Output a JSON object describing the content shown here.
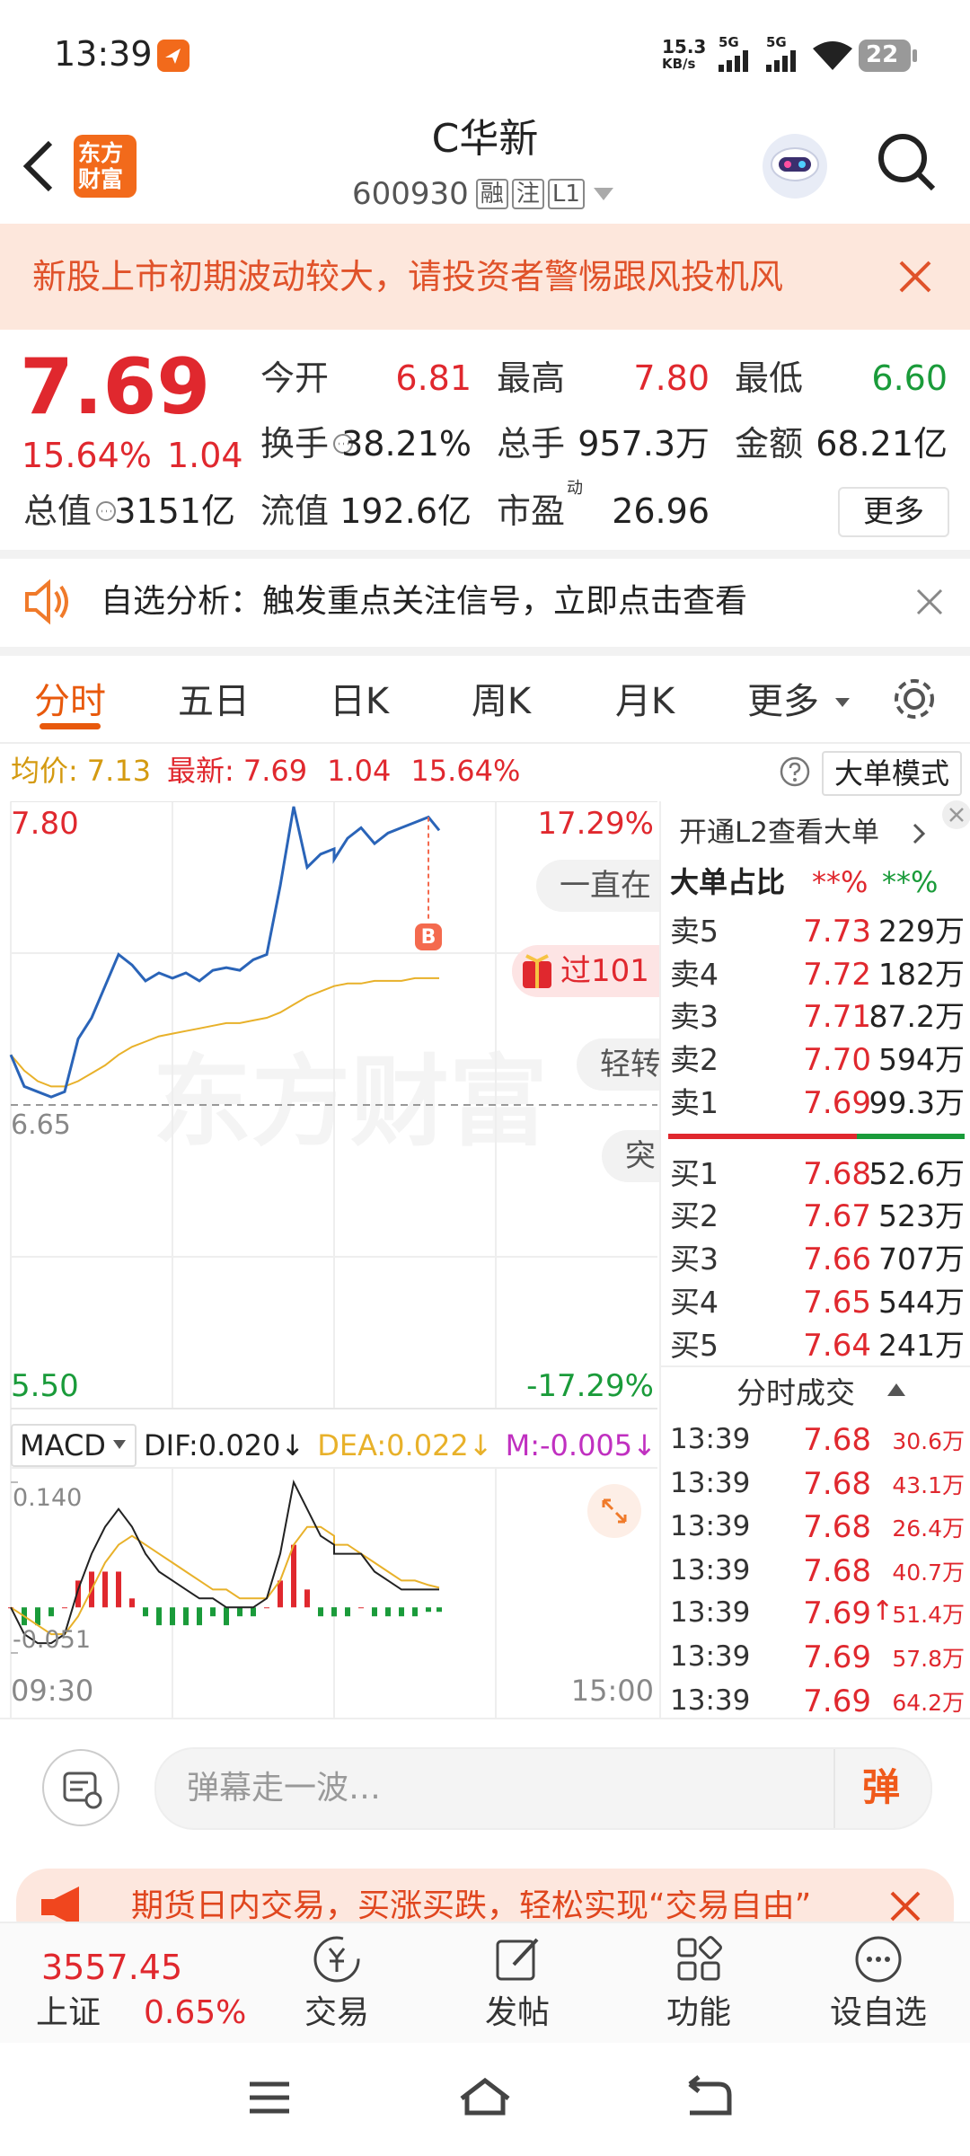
{
  "status_bar": {
    "time": "13:39",
    "net_speed": "15.3",
    "net_unit": "KB/s",
    "signal_1": "5G",
    "signal_2": "5G",
    "battery": "22"
  },
  "header": {
    "title": "C华新",
    "code": "600930",
    "tags": [
      "融",
      "注",
      "L1"
    ],
    "logo": [
      "东方",
      "财富"
    ]
  },
  "warning": {
    "text": "新股上市初期波动较大，请投资者警惕跟风投机风"
  },
  "quote": {
    "price": "7.69",
    "change_pct": "15.64%",
    "change": "1.04",
    "fields": [
      {
        "label": "今开",
        "value": "6.81"
      },
      {
        "label": "最高",
        "value": "7.80"
      },
      {
        "label": "最低",
        "value": "6.60"
      },
      {
        "label": "换手",
        "value": "38.21%"
      },
      {
        "label": "总手",
        "value": "957.3万"
      },
      {
        "label": "金额",
        "value": "68.21亿"
      },
      {
        "label": "总值",
        "value": "3151亿"
      },
      {
        "label": "流值",
        "value": "192.6亿"
      },
      {
        "label": "市盈",
        "sup": "动",
        "value": "26.96"
      }
    ],
    "more": "更多"
  },
  "notice": {
    "text": "自选分析：触发重点关注信号，立即点击查看"
  },
  "tabs": {
    "items": [
      "分时",
      "五日",
      "日K",
      "周K",
      "月K",
      "更多"
    ],
    "active": 0
  },
  "ticker_line": {
    "avg_label": "均价:",
    "avg": "7.13",
    "latest_label": "最新:",
    "latest": "7.69",
    "change": "1.04",
    "change_pct": "15.64%",
    "mode_button": "大单模式"
  },
  "intraday": {
    "x": [
      "09:30",
      "09:35",
      "09:40",
      "09:45",
      "09:50",
      "09:55",
      "10:00",
      "10:05",
      "10:10",
      "10:15",
      "10:20",
      "10:25",
      "10:30",
      "10:35",
      "10:40",
      "10:45",
      "10:50",
      "10:55",
      "11:00",
      "11:05",
      "11:10",
      "11:15",
      "11:20",
      "11:25",
      "11:30",
      "13:00",
      "13:05",
      "13:10",
      "13:15",
      "13:20",
      "13:25",
      "13:30",
      "13:35",
      "13:39"
    ],
    "price": [
      6.84,
      6.72,
      6.7,
      6.68,
      6.7,
      6.9,
      6.98,
      7.1,
      7.22,
      7.18,
      7.12,
      7.15,
      7.13,
      7.15,
      7.12,
      7.16,
      7.17,
      7.16,
      7.2,
      7.22,
      7.48,
      7.78,
      7.55,
      7.6,
      7.62,
      7.58,
      7.66,
      7.7,
      7.64,
      7.68,
      7.7,
      7.72,
      7.74,
      7.69
    ],
    "avg": [
      6.84,
      6.78,
      6.74,
      6.72,
      6.72,
      6.74,
      6.77,
      6.8,
      6.84,
      6.87,
      6.89,
      6.91,
      6.92,
      6.93,
      6.94,
      6.95,
      6.96,
      6.96,
      6.97,
      6.98,
      7.0,
      7.03,
      7.06,
      7.08,
      7.1,
      7.1,
      7.11,
      7.11,
      7.12,
      7.12,
      7.12,
      7.13,
      7.13,
      7.13
    ],
    "ylim": [
      5.5,
      7.8
    ],
    "yticks": [
      {
        "value": 7.8,
        "label": "7.80"
      },
      {
        "value": 6.65,
        "label": "6.65"
      },
      {
        "value": 5.5,
        "label": "5.50"
      }
    ],
    "pct_labels": [
      "17.29%",
      "-17.29%"
    ],
    "x_labels": [
      "09:30",
      "15:00"
    ],
    "watermark": "东方财富",
    "buy_marker": "B",
    "bubbles": [
      "一直在",
      "过101",
      "轻转",
      "突"
    ],
    "price_color": "#2a64b8",
    "avg_color": "#e8b12a",
    "macd": {
      "selector": "MACD",
      "dif_label": "DIF:0.020↓",
      "dea_label": "DEA:0.022↓",
      "m_label": "M:-0.005↓",
      "dif": [
        0.0,
        -0.03,
        -0.04,
        -0.04,
        -0.03,
        0.02,
        0.06,
        0.09,
        0.11,
        0.09,
        0.06,
        0.04,
        0.03,
        0.02,
        0.01,
        0.01,
        0.0,
        0.0,
        0.0,
        0.01,
        0.06,
        0.14,
        0.11,
        0.08,
        0.07,
        0.06,
        0.06,
        0.06,
        0.04,
        0.03,
        0.02,
        0.02,
        0.02,
        0.02
      ],
      "dea": [
        0.0,
        -0.01,
        -0.02,
        -0.03,
        -0.03,
        -0.01,
        0.02,
        0.05,
        0.07,
        0.08,
        0.07,
        0.06,
        0.05,
        0.04,
        0.03,
        0.02,
        0.02,
        0.01,
        0.01,
        0.01,
        0.03,
        0.07,
        0.09,
        0.09,
        0.08,
        0.07,
        0.07,
        0.06,
        0.05,
        0.04,
        0.03,
        0.03,
        0.025,
        0.022
      ],
      "m": [
        0.0,
        -0.02,
        -0.02,
        -0.01,
        0.0,
        0.03,
        0.04,
        0.04,
        0.04,
        0.01,
        -0.01,
        -0.02,
        -0.02,
        -0.02,
        -0.02,
        -0.01,
        -0.02,
        -0.01,
        -0.01,
        0.0,
        0.03,
        0.07,
        0.02,
        -0.01,
        -0.01,
        -0.01,
        -0.01,
        0.0,
        -0.01,
        -0.01,
        -0.01,
        -0.01,
        -0.005,
        -0.005
      ],
      "ylim": [
        -0.051,
        0.14
      ],
      "yticks": [
        {
          "value": 0.14,
          "label": "0.140"
        },
        -0.051
      ],
      "dif_color": "#222222",
      "dea_color": "#e8b12a",
      "up_color": "#e0282e",
      "down_color": "#1a9b3a"
    }
  },
  "order_book": {
    "promo": "开通L2查看大单",
    "big_order_label": "大单占比",
    "big_buy": "**%",
    "big_sell": "**%",
    "asks": [
      {
        "label": "卖5",
        "price": "7.73",
        "volume": "229万"
      },
      {
        "label": "卖4",
        "price": "7.72",
        "volume": "182万"
      },
      {
        "label": "卖3",
        "price": "7.71",
        "volume": "87.2万"
      },
      {
        "label": "卖2",
        "price": "7.70",
        "volume": "594万"
      },
      {
        "label": "卖1",
        "price": "7.69",
        "volume": "99.3万"
      }
    ],
    "bids": [
      {
        "label": "买1",
        "price": "7.68",
        "volume": "52.6万"
      },
      {
        "label": "买2",
        "price": "7.67",
        "volume": "523万"
      },
      {
        "label": "买3",
        "price": "7.66",
        "volume": "707万"
      },
      {
        "label": "买4",
        "price": "7.65",
        "volume": "544万"
      },
      {
        "label": "买5",
        "price": "7.64",
        "volume": "241万"
      }
    ]
  },
  "trades": {
    "title": "分时成交",
    "rows": [
      {
        "time": "13:39",
        "price": "7.68",
        "volume": "30.6万"
      },
      {
        "time": "13:39",
        "price": "7.68",
        "volume": "43.1万"
      },
      {
        "time": "13:39",
        "price": "7.68",
        "volume": "26.4万"
      },
      {
        "time": "13:39",
        "price": "7.68",
        "volume": "40.7万"
      },
      {
        "time": "13:39",
        "price": "7.69",
        "direction": "↑",
        "volume": "51.4万"
      },
      {
        "time": "13:39",
        "price": "7.69",
        "volume": "57.8万"
      },
      {
        "time": "13:39",
        "price": "7.69",
        "volume": "64.2万"
      }
    ]
  },
  "comment_bar": {
    "placeholder": "弹幕走一波…",
    "button": "弹"
  },
  "ad": {
    "text": "期货日内交易，买涨买跌，轻松实现“交易自由”"
  },
  "bottom_nav": {
    "index_value": "3557.45",
    "index_name": "上证",
    "index_change": "0.65%",
    "items": [
      "交易",
      "发帖",
      "功能",
      "设自选"
    ]
  }
}
